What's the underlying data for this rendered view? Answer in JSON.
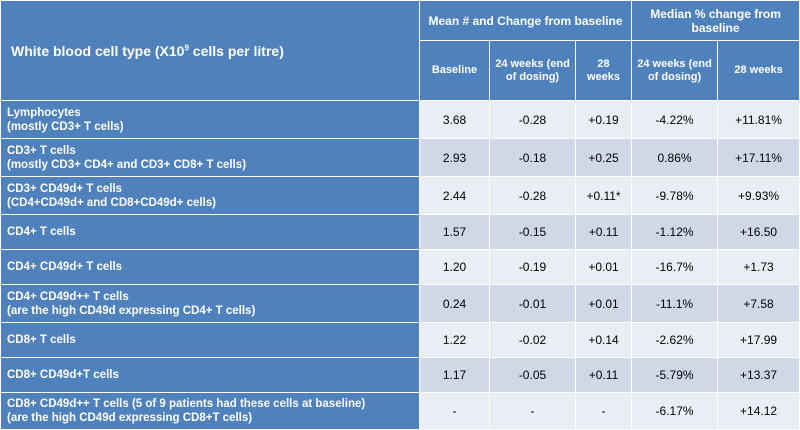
{
  "header": {
    "row_label_title_prefix": "White blood cell type (X10",
    "row_label_title_sup": "9",
    "row_label_title_suffix": " cells per litre)",
    "group_mean": "Mean # and Change from baseline",
    "group_median": "Median % change from baseline",
    "col_baseline": "Baseline",
    "col_24_mean": "24 weeks (end of dosing)",
    "col_28_mean": "28 weeks",
    "col_24_median": "24 weeks (end of dosing)",
    "col_28_median": "28 weeks"
  },
  "rows": [
    {
      "label1": "Lymphocytes",
      "label2": "(mostly CD3+ T cells)",
      "baseline": "3.68",
      "mean24": "-0.28",
      "mean28": "+0.19",
      "med24": "-4.22%",
      "med28": "+11.81%"
    },
    {
      "label1": "CD3+ T cells",
      "label2": "(mostly CD3+ CD4+ and CD3+ CD8+ T cells)",
      "baseline": "2.93",
      "mean24": "-0.18",
      "mean28": "+0.25",
      "med24": "0.86%",
      "med28": "+17.11%"
    },
    {
      "label1": "CD3+ CD49d+ T cells",
      "label2": "(CD4+CD49d+ and CD8+CD49d+ cells)",
      "baseline": "2.44",
      "mean24": "-0.28",
      "mean28": "+0.11*",
      "med24": "-9.78%",
      "med28": "+9.93%"
    },
    {
      "label1": "CD4+ T cells",
      "label2": "",
      "baseline": "1.57",
      "mean24": "-0.15",
      "mean28": "+0.11",
      "med24": "-1.12%",
      "med28": "+16.50"
    },
    {
      "label1": "CD4+ CD49d+ T cells",
      "label2": "",
      "baseline": "1.20",
      "mean24": "-0.19",
      "mean28": "+0.01",
      "med24": "-16.7%",
      "med28": "+1.73"
    },
    {
      "label1": "CD4+ CD49d++ T cells",
      "label2": "(are the high CD49d expressing CD4+ T cells)",
      "baseline": "0.24",
      "mean24": "-0.01",
      "mean28": "+0.01",
      "med24": "-11.1%",
      "med28": "+7.58"
    },
    {
      "label1": "CD8+ T cells",
      "label2": "",
      "baseline": "1.22",
      "mean24": "-0.02",
      "mean28": "+0.14",
      "med24": "-2.62%",
      "med28": "+17.99"
    },
    {
      "label1": "CD8+ CD49d+T cells",
      "label2": "",
      "baseline": "1.17",
      "mean24": "-0.05",
      "mean28": "+0.11",
      "med24": "-5.79%",
      "med28": "+13.37"
    },
    {
      "label1": "CD8+ CD49d++ T cells (5 of 9 patients had these cells at baseline)",
      "label2": "(are the high CD49d expressing CD8+T cells)",
      "baseline": "-",
      "mean24": "-",
      "mean28": "-",
      "med24": "-6.17%",
      "med28": "+14.12"
    }
  ],
  "colors": {
    "header_blue": "#4f81bd",
    "row_light": "#e9edf4",
    "row_dark": "#d0d8e8"
  }
}
